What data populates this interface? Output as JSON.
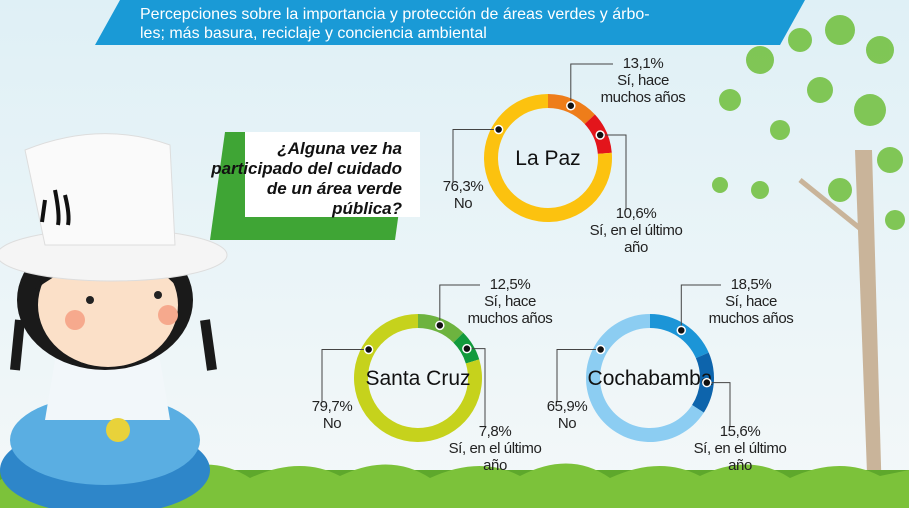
{
  "header": {
    "lines": [
      "Percepciones sobre la importancia y protección de áreas verdes y árbo-",
      "les; más basura, reciclaje y conciencia ambiental"
    ]
  },
  "question": {
    "lines": [
      "¿Alguna vez ha",
      "participado del cuidado",
      "de un área verde",
      "pública?"
    ]
  },
  "chart_data": [
    {
      "type": "donut",
      "title": "La Paz",
      "categories": [
        "Sí, hace muchos años",
        "Sí, en el último año",
        "No"
      ],
      "values": [
        13.1,
        10.6,
        76.3
      ],
      "value_labels": [
        "13,1%",
        "10,6%",
        "76,3%"
      ],
      "colors": [
        "#ee7d1a",
        "#e3151b",
        "#fcc20f"
      ]
    },
    {
      "type": "donut",
      "title": "Santa Cruz",
      "categories": [
        "Sí, hace muchos años",
        "Sí, en el último año",
        "No"
      ],
      "values": [
        12.5,
        7.8,
        79.7
      ],
      "value_labels": [
        "12,5%",
        "7,8%",
        "79,7%"
      ],
      "colors": [
        "#6db33f",
        "#129a3c",
        "#c6d21c"
      ]
    },
    {
      "type": "donut",
      "title": "Cochabamba",
      "categories": [
        "Sí, hace muchos años",
        "Sí, en el último año",
        "No"
      ],
      "values": [
        18.5,
        15.6,
        65.9
      ],
      "value_labels": [
        "18,5%",
        "15,6%",
        "65,9%"
      ],
      "colors": [
        "#1c95d7",
        "#0d64ac",
        "#8ccdf2"
      ]
    }
  ]
}
